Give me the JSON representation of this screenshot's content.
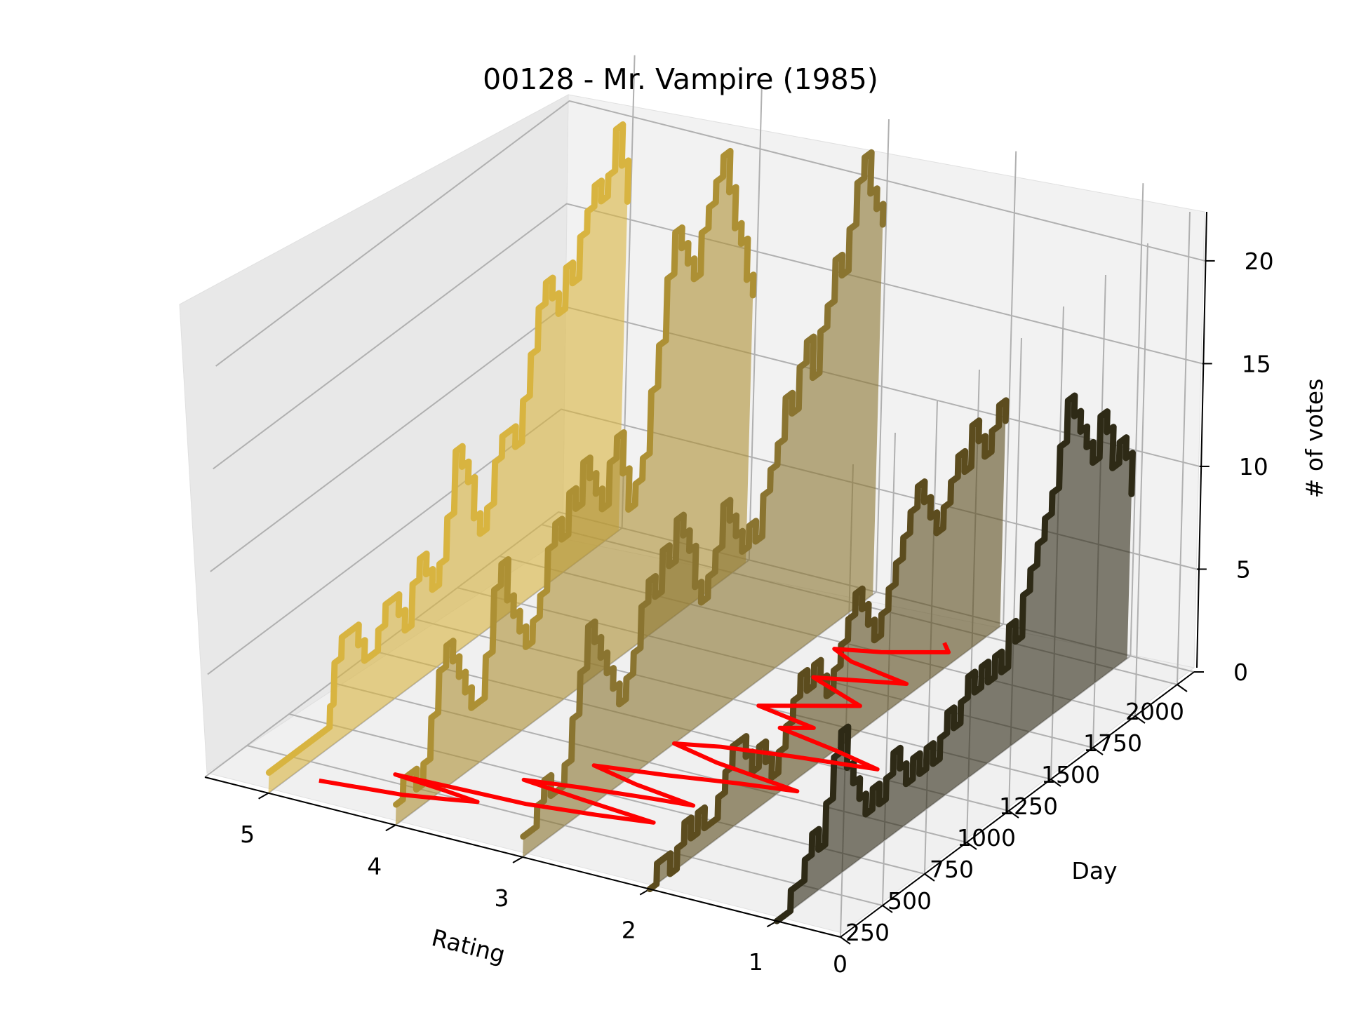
{
  "chart_data": {
    "type": "area",
    "subtype": "3d-waterfall",
    "title": "00128 - Mr. Vampire (1985)",
    "xlabel": "Rating",
    "ylabel": "Day",
    "zlabel": "# of votes",
    "x_ticks": [
      "5",
      "4",
      "3",
      "2",
      "1"
    ],
    "y_ticks": [
      "0",
      "250",
      "500",
      "750",
      "1000",
      "1250",
      "1500",
      "1750",
      "2000"
    ],
    "z_ticks": [
      "0",
      "5",
      "10",
      "15",
      "20"
    ],
    "xlim": [
      0.5,
      5.5
    ],
    "ylim": [
      0,
      2100
    ],
    "zlim": [
      0,
      23
    ],
    "grid": true,
    "series": [
      {
        "name": "5",
        "color": "#d8b440",
        "x": [
          0,
          100,
          200,
          300,
          360,
          380,
          420,
          460,
          520,
          560,
          600,
          640,
          680,
          720,
          760,
          800,
          840,
          880,
          920,
          960,
          1000,
          1040,
          1080,
          1120,
          1160,
          1200,
          1240,
          1280,
          1320,
          1360,
          1400,
          1440,
          1480,
          1520,
          1560,
          1600,
          1640,
          1680,
          1720,
          1760,
          1800,
          1840,
          1880,
          1920,
          1960,
          2000,
          2040,
          2080
        ],
        "values": [
          1,
          1,
          1,
          1,
          2,
          4,
          5,
          5,
          4,
          3,
          3,
          4,
          5,
          5,
          4,
          3,
          5,
          6,
          5,
          4,
          5,
          7,
          10,
          9,
          8,
          6,
          5,
          6,
          8,
          9,
          9,
          8,
          10,
          12,
          14,
          15,
          14,
          13,
          15,
          14,
          16,
          17,
          18,
          17,
          18,
          20,
          18,
          16
        ]
      },
      {
        "name": "4",
        "color": "#ad9034",
        "x": [
          0,
          40,
          80,
          120,
          160,
          200,
          240,
          280,
          320,
          360,
          400,
          440,
          480,
          520,
          560,
          600,
          640,
          680,
          720,
          760,
          800,
          840,
          880,
          920,
          960,
          1000,
          1040,
          1080,
          1120,
          1160,
          1200,
          1240,
          1280,
          1320,
          1360,
          1400,
          1440,
          1480,
          1520,
          1560,
          1600,
          1640,
          1680,
          1720,
          1760,
          1800,
          1840,
          1880,
          1920,
          1960,
          2000,
          2040,
          2080
        ],
        "values": [
          1,
          2,
          2,
          1,
          2,
          4,
          6,
          7,
          6,
          5,
          4,
          3,
          3,
          5,
          8,
          9,
          7,
          6,
          5,
          4,
          5,
          6,
          8,
          9,
          8,
          10,
          9,
          11,
          10,
          9,
          8,
          10,
          11,
          9,
          7,
          8,
          9,
          12,
          14,
          17,
          19,
          18,
          17,
          16,
          18,
          19,
          20,
          21,
          19,
          17,
          16,
          14,
          13
        ]
      },
      {
        "name": "3",
        "color": "#8a7430",
        "x": [
          0,
          40,
          80,
          120,
          160,
          200,
          240,
          280,
          320,
          360,
          400,
          440,
          480,
          520,
          560,
          600,
          640,
          680,
          720,
          760,
          800,
          840,
          880,
          920,
          960,
          1000,
          1040,
          1080,
          1120,
          1160,
          1200,
          1240,
          1280,
          1320,
          1360,
          1400,
          1440,
          1480,
          1520,
          1560,
          1600,
          1640,
          1680,
          1720,
          1760,
          1800,
          1840,
          1880,
          1920,
          1960,
          2000,
          2040,
          2080
        ],
        "values": [
          1,
          1,
          2,
          3,
          2,
          2,
          3,
          5,
          7,
          9,
          8,
          7,
          6,
          5,
          4,
          5,
          6,
          8,
          9,
          8,
          10,
          9,
          11,
          10,
          9,
          7,
          6,
          7,
          8,
          10,
          9,
          8,
          7,
          8,
          7,
          9,
          10,
          11,
          13,
          12,
          14,
          15,
          13,
          15,
          16,
          18,
          17,
          19,
          21,
          22,
          20,
          19,
          18
        ]
      },
      {
        "name": "2",
        "color": "#5c4c1e",
        "x": [
          0,
          40,
          80,
          120,
          160,
          200,
          240,
          280,
          320,
          360,
          400,
          440,
          480,
          520,
          560,
          600,
          640,
          680,
          720,
          760,
          800,
          840,
          880,
          920,
          960,
          1000,
          1040,
          1080,
          1120,
          1160,
          1200,
          1240,
          1280,
          1320,
          1360,
          1400,
          1440,
          1480,
          1520,
          1560,
          1600,
          1640,
          1680,
          1720,
          1760,
          1800,
          1840,
          1880,
          1920,
          1960,
          2000,
          2040,
          2080
        ],
        "values": [
          0,
          1,
          1,
          0,
          1,
          2,
          1,
          2,
          1,
          1,
          2,
          3,
          4,
          4,
          3,
          2,
          3,
          2,
          1,
          2,
          3,
          4,
          5,
          4,
          5,
          4,
          3,
          4,
          5,
          6,
          7,
          6,
          5,
          4,
          5,
          6,
          7,
          8,
          9,
          10,
          9,
          8,
          7,
          8,
          9,
          10,
          9,
          11,
          10,
          9,
          10,
          11,
          10
        ]
      },
      {
        "name": "1",
        "color": "#2e2a16",
        "x": [
          0,
          40,
          80,
          120,
          160,
          200,
          240,
          280,
          320,
          360,
          400,
          440,
          480,
          520,
          560,
          600,
          640,
          680,
          720,
          760,
          800,
          840,
          880,
          920,
          960,
          1000,
          1040,
          1080,
          1120,
          1160,
          1200,
          1240,
          1280,
          1320,
          1360,
          1400,
          1440,
          1480,
          1520,
          1560,
          1600,
          1640,
          1680,
          1720,
          1760,
          1800,
          1840,
          1880,
          1920,
          1960,
          2000,
          2040,
          2080
        ],
        "values": [
          0,
          0,
          1,
          1,
          2,
          3,
          2,
          4,
          6,
          7,
          5,
          4,
          3,
          2,
          3,
          2,
          3,
          4,
          3,
          2,
          3,
          2,
          3,
          2,
          3,
          4,
          3,
          4,
          5,
          4,
          5,
          4,
          5,
          4,
          6,
          5,
          7,
          8,
          9,
          10,
          11,
          13,
          15,
          14,
          13,
          12,
          11,
          13,
          12,
          10,
          11,
          10,
          8
        ]
      }
    ],
    "red_trace": {
      "name": "",
      "color": "#ff0000",
      "x": [
        4.8,
        4.5,
        4.2,
        3.9,
        3.7,
        4.0,
        4.4,
        3.4,
        2.9,
        2.5,
        3.1,
        3.6,
        3.2,
        2.7,
        2.4,
        2.9,
        3.3,
        2.8,
        2.3,
        1.9,
        2.6,
        3.0,
        2.7,
        2.2,
        1.6,
        2.0,
        2.5,
        2.3,
        2.8,
        2.6,
        2.2,
        2.7,
        2.4,
        2.1,
        2.6,
        2.8,
        2.5,
        2.3,
        2.1,
        2.2
      ],
      "y": [
        150,
        170,
        190,
        230,
        260,
        280,
        300,
        320,
        360,
        400,
        430,
        460,
        500,
        540,
        560,
        600,
        650,
        700,
        760,
        800,
        850,
        900,
        950,
        1000,
        1050,
        1100,
        1150,
        1200,
        1250,
        1300,
        1400,
        1500,
        1550,
        1600,
        1650,
        1700,
        1750,
        1800,
        1850,
        1900
      ],
      "values": [
        0,
        0,
        0,
        0,
        0,
        0,
        0,
        0,
        0,
        0,
        0,
        0,
        0,
        0,
        0,
        0,
        0,
        0,
        0,
        0,
        0,
        0,
        0,
        0,
        0,
        0,
        0,
        0,
        0,
        0,
        0,
        0,
        0,
        0,
        0,
        0,
        0,
        0,
        0,
        0
      ]
    }
  }
}
